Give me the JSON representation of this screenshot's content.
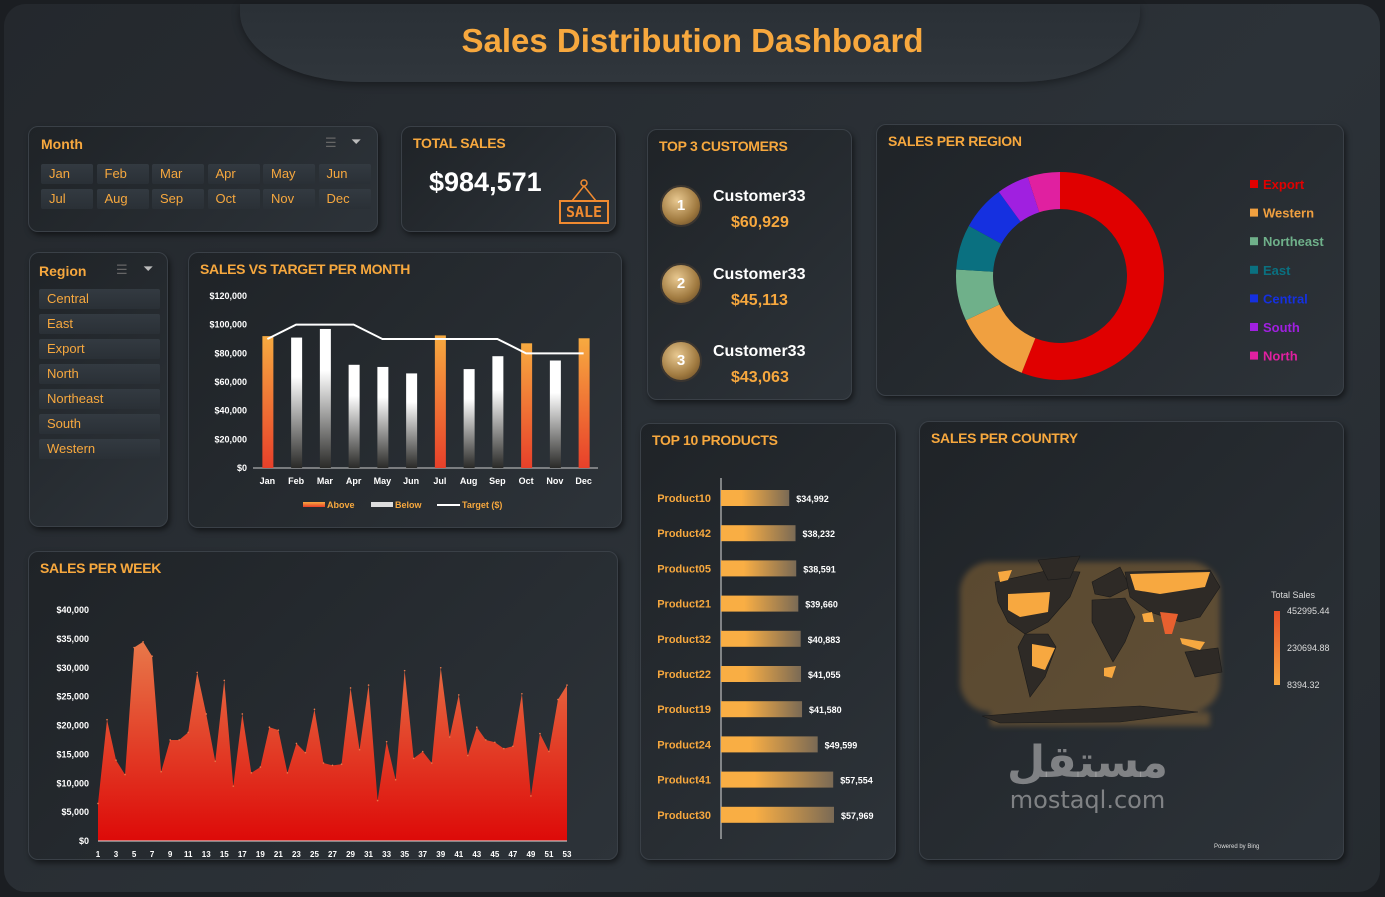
{
  "title": "Sales Distribution Dashboard",
  "month_slicer": {
    "label": "Month",
    "items": [
      "Jan",
      "Feb",
      "Mar",
      "Apr",
      "May",
      "Jun",
      "Jul",
      "Aug",
      "Sep",
      "Oct",
      "Nov",
      "Dec"
    ]
  },
  "total_sales": {
    "label": "TOTAL SALES",
    "value": "$984,571",
    "badge": "SALE"
  },
  "top_customers": {
    "label": "TOP 3 CUSTOMERS",
    "items": [
      {
        "rank": "1",
        "name": "Customer33",
        "value": "$60,929"
      },
      {
        "rank": "2",
        "name": "Customer33",
        "value": "$45,113"
      },
      {
        "rank": "3",
        "name": "Customer33",
        "value": "$43,063"
      }
    ]
  },
  "region_slicer": {
    "label": "Region",
    "items": [
      "Central",
      "East",
      "Export",
      "North",
      "Northeast",
      "South",
      "Western"
    ]
  },
  "chart_data": [
    {
      "id": "region",
      "type": "pie",
      "title": "SALES PER REGION",
      "legend": "right",
      "categories": [
        "Export",
        "Western",
        "Northeast",
        "East",
        "Central",
        "South",
        "North"
      ],
      "values": [
        56,
        12,
        8,
        7,
        7,
        5,
        5
      ],
      "colors": [
        "#e00000",
        "#f0a040",
        "#6fb08a",
        "#0a7080",
        "#1530e0",
        "#a020e0",
        "#e020a0"
      ]
    },
    {
      "id": "month",
      "type": "bar",
      "title": "SALES VS TARGET PER MONTH",
      "categories": [
        "Jan",
        "Feb",
        "Mar",
        "Apr",
        "May",
        "Jun",
        "Jul",
        "Aug",
        "Sep",
        "Oct",
        "Nov",
        "Dec"
      ],
      "values": [
        92000,
        91000,
        97000,
        72000,
        70500,
        66000,
        92500,
        69000,
        78000,
        87000,
        75000,
        90500
      ],
      "target": [
        90000,
        100000,
        100000,
        100000,
        90000,
        90000,
        90000,
        90000,
        90000,
        80000,
        80000,
        80000
      ],
      "ylim": [
        0,
        120000
      ],
      "yticks": [
        "$0",
        "$20,000",
        "$40,000",
        "$60,000",
        "$80,000",
        "$100,000",
        "$120,000"
      ],
      "legend": [
        "Above",
        "Below",
        "Target ($)"
      ]
    },
    {
      "id": "week",
      "type": "area",
      "title": "SALES PER WEEK",
      "x": [
        1,
        2,
        3,
        4,
        5,
        6,
        7,
        8,
        9,
        10,
        11,
        12,
        13,
        14,
        15,
        16,
        17,
        18,
        19,
        20,
        21,
        22,
        23,
        24,
        25,
        26,
        27,
        28,
        29,
        30,
        31,
        32,
        33,
        34,
        35,
        36,
        37,
        38,
        39,
        40,
        41,
        42,
        43,
        44,
        45,
        46,
        47,
        48,
        49,
        50,
        51,
        52,
        53
      ],
      "values": [
        6500,
        21000,
        14000,
        11500,
        33500,
        34500,
        32000,
        12000,
        17500,
        17500,
        18800,
        29200,
        22000,
        13800,
        27800,
        9500,
        22000,
        11800,
        12800,
        19700,
        19200,
        11800,
        16900,
        15300,
        22800,
        13500,
        13100,
        13300,
        26500,
        15800,
        27000,
        7000,
        17200,
        10600,
        29500,
        14300,
        15500,
        13500,
        30000,
        18000,
        25300,
        14800,
        19700,
        17500,
        17100,
        16000,
        16400,
        25500,
        7800,
        18600,
        15500,
        24500,
        27000
      ],
      "ylim": [
        0,
        40000
      ],
      "yticks": [
        "$0",
        "$5,000",
        "$10,000",
        "$15,000",
        "$20,000",
        "$25,000",
        "$30,000",
        "$35,000",
        "$40,000"
      ]
    },
    {
      "id": "products",
      "type": "bar",
      "title": "TOP 10 PRODUCTS",
      "categories": [
        "Product10",
        "Product42",
        "Product05",
        "Product21",
        "Product32",
        "Product22",
        "Product19",
        "Product24",
        "Product41",
        "Product30"
      ],
      "values": [
        34992,
        38232,
        38591,
        39660,
        40883,
        41055,
        41580,
        49599,
        57554,
        57969
      ],
      "labels": [
        "$34,992",
        "$38,232",
        "$38,591",
        "$39,660",
        "$40,883",
        "$41,055",
        "$41,580",
        "$49,599",
        "$57,554",
        "$57,969"
      ]
    }
  ],
  "country": {
    "label": "SALES PER COUNTRY",
    "legend_title": "Total Sales",
    "legend_max": "452995.44",
    "legend_mid": "230694.88",
    "legend_min": "8394.32",
    "credit": "Powered by Bing"
  },
  "watermark": {
    "arabic": "مستقل",
    "latin": "mostaql.com"
  }
}
